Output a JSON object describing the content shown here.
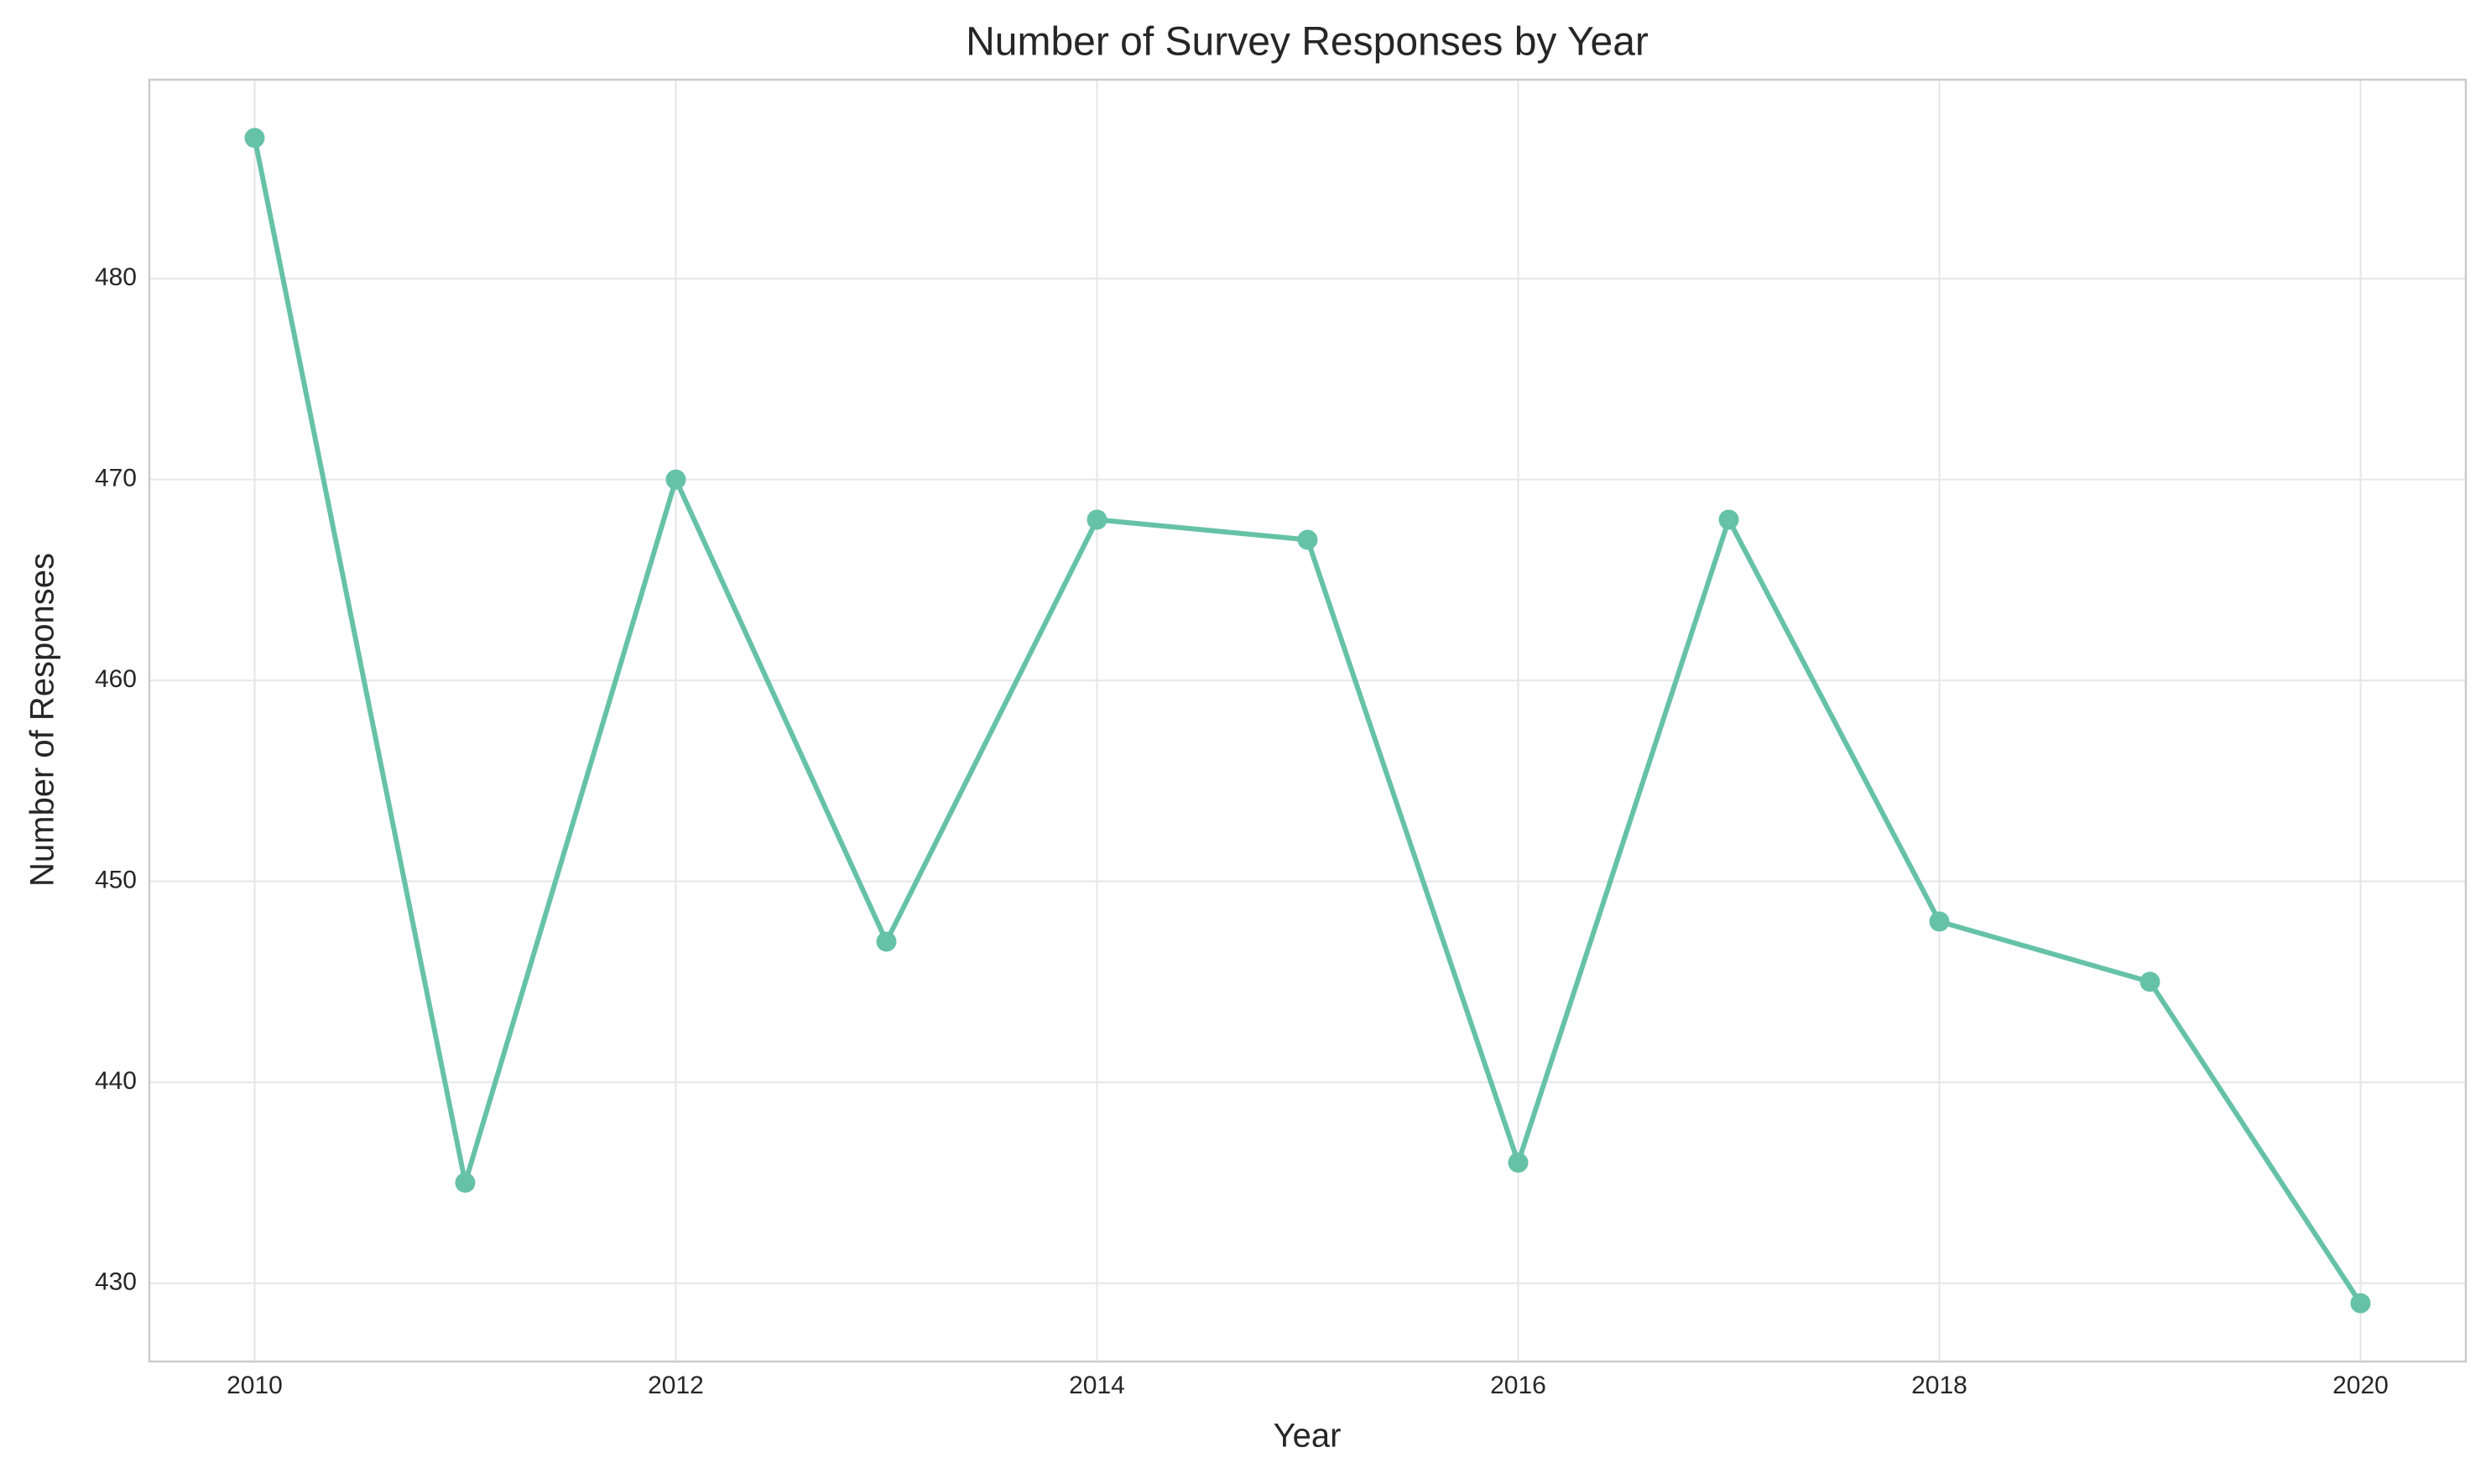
{
  "chart_data": {
    "type": "line",
    "title": "Number of Survey Responses by Year",
    "xlabel": "Year",
    "ylabel": "Number of Responses",
    "x": [
      2010,
      2011,
      2012,
      2013,
      2014,
      2015,
      2016,
      2017,
      2018,
      2019,
      2020
    ],
    "series": [
      {
        "name": "Responses",
        "color": "#66c2a5",
        "values": [
          487,
          435,
          470,
          447,
          468,
          467,
          436,
          468,
          448,
          445,
          429
        ]
      }
    ],
    "xlim": [
      2009.5,
      2020.5
    ],
    "xticks": [
      2010,
      2012,
      2014,
      2016,
      2018,
      2020
    ],
    "ylim": [
      426.1,
      489.9
    ],
    "yticks": [
      430,
      440,
      450,
      460,
      470,
      480
    ],
    "grid": true
  }
}
